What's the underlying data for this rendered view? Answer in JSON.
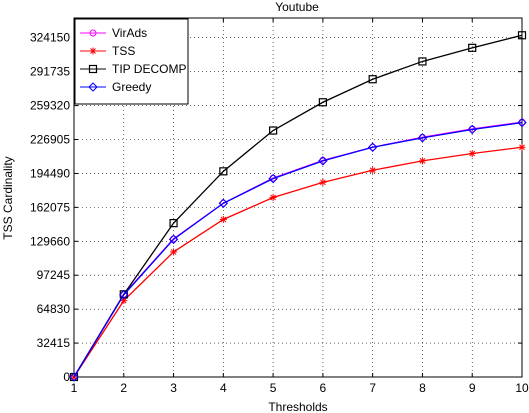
{
  "chart_data": {
    "type": "line",
    "title": "Youtube",
    "xlabel": "Thresholds",
    "ylabel": "TSS Cardinality",
    "x": [
      1,
      2,
      3,
      4,
      5,
      6,
      7,
      8,
      9,
      10
    ],
    "xlim": [
      1,
      10
    ],
    "ylim": [
      0,
      343000
    ],
    "xticks": [
      "1",
      "2",
      "3",
      "4",
      "5",
      "6",
      "7",
      "8",
      "9",
      "10"
    ],
    "yticks": [
      0,
      32415,
      64830,
      97245,
      129660,
      162075,
      194490,
      226905,
      259320,
      291735,
      324150
    ],
    "ytick_labels": [
      "0",
      "32415",
      "64830",
      "97245",
      "129660",
      "162075",
      "194490",
      "226905",
      "259320",
      "291735",
      "324150"
    ],
    "grid": true,
    "legend_position": "top-left",
    "series": [
      {
        "name": "VirAds",
        "color": "#ff00ff",
        "marker": "circle-open",
        "values": [
          0,
          79000,
          132000,
          166000,
          190000,
          207000,
          219500,
          229000,
          237000,
          243500
        ]
      },
      {
        "name": "TSS",
        "color": "#ff0000",
        "marker": "star",
        "values": [
          0,
          73000,
          119500,
          150500,
          171500,
          186000,
          197500,
          206500,
          213500,
          219500
        ]
      },
      {
        "name": "TIP DECOMP",
        "color": "#000000",
        "marker": "square-open",
        "values": [
          0,
          79000,
          147000,
          196500,
          235500,
          262500,
          284500,
          301500,
          314500,
          326500
        ]
      },
      {
        "name": "Greedy",
        "color": "#0000ff",
        "marker": "diamond-open",
        "values": [
          0,
          78500,
          131500,
          166000,
          189500,
          206500,
          219500,
          228500,
          236500,
          243000
        ]
      }
    ]
  }
}
